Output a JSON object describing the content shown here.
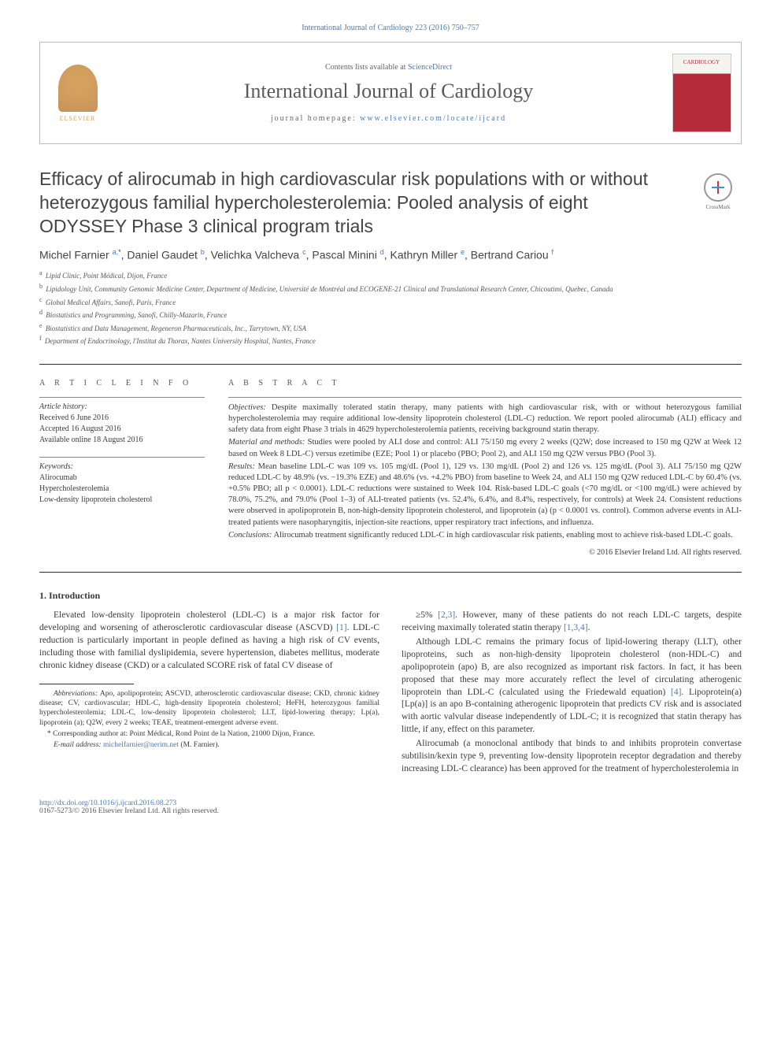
{
  "top_citation": "International Journal of Cardiology 223 (2016) 750–757",
  "header": {
    "contents_prefix": "Contents lists available at ",
    "contents_link": "ScienceDirect",
    "journal": "International Journal of Cardiology",
    "homepage_prefix": "journal homepage: ",
    "homepage_url": "www.elsevier.com/locate/ijcard",
    "publisher_logo_text": "ELSEVIER",
    "cover_text": "CARDIOLOGY"
  },
  "crossmark_label": "CrossMark",
  "title": "Efficacy of alirocumab in high cardiovascular risk populations with or without heterozygous familial hypercholesterolemia: Pooled analysis of eight ODYSSEY Phase 3 clinical program trials",
  "authors_html": "Michel Farnier <sup>a,</sup><sup class=\"sup-star\">*</sup>, Daniel Gaudet <sup>b</sup>, Velichka Valcheva <sup>c</sup>, Pascal Minini <sup>d</sup>, Kathryn Miller <sup>e</sup>, Bertrand Cariou <sup>f</sup>",
  "affiliations": [
    {
      "sup": "a",
      "text": "Lipid Clinic, Point Médical, Dijon, France"
    },
    {
      "sup": "b",
      "text": "Lipidology Unit, Community Genomic Medicine Center, Department of Medicine, Université de Montréal and ECOGENE-21 Clinical and Translational Research Center, Chicoutimi, Quebec, Canada"
    },
    {
      "sup": "c",
      "text": "Global Medical Affairs, Sanofi, Paris, France"
    },
    {
      "sup": "d",
      "text": "Biostatistics and Programming, Sanofi, Chilly-Mazarin, France"
    },
    {
      "sup": "e",
      "text": "Biostatistics and Data Management, Regeneron Pharmaceuticals, Inc., Tarrytown, NY, USA"
    },
    {
      "sup": "f",
      "text": "Department of Endocrinology, l'Institut du Thorax, Nantes University Hospital, Nantes, France"
    }
  ],
  "article_info": {
    "heading": "A R T I C L E   I N F O",
    "history_label": "Article history:",
    "history_lines": [
      "Received 6 June 2016",
      "Accepted 16 August 2016",
      "Available online 18 August 2016"
    ],
    "keywords_label": "Keywords:",
    "keywords": [
      "Alirocumab",
      "Hypercholesterolemia",
      "Low-density lipoprotein cholesterol"
    ]
  },
  "abstract": {
    "heading": "A B S T R A C T",
    "objectives_label": "Objectives:",
    "objectives": "Despite maximally tolerated statin therapy, many patients with high cardiovascular risk, with or without heterozygous familial hypercholesterolemia may require additional low-density lipoprotein cholesterol (LDL-C) reduction. We report pooled alirocumab (ALI) efficacy and safety data from eight Phase 3 trials in 4629 hypercholesterolemia patients, receiving background statin therapy.",
    "methods_label": "Material and methods:",
    "methods": "Studies were pooled by ALI dose and control: ALI 75/150 mg every 2 weeks (Q2W; dose increased to 150 mg Q2W at Week 12 based on Week 8 LDL-C) versus ezetimibe (EZE; Pool 1) or placebo (PBO; Pool 2), and ALI 150 mg Q2W versus PBO (Pool 3).",
    "results_label": "Results:",
    "results": "Mean baseline LDL-C was 109 vs. 105 mg/dL (Pool 1), 129 vs. 130 mg/dL (Pool 2) and 126 vs. 125 mg/dL (Pool 3). ALI 75/150 mg Q2W reduced LDL-C by 48.9% (vs. −19.3% EZE) and 48.6% (vs. +4.2% PBO) from baseline to Week 24, and ALI 150 mg Q2W reduced LDL-C by 60.4% (vs. +0.5% PBO; all p < 0.0001). LDL-C reductions were sustained to Week 104. Risk-based LDL-C goals (<70 mg/dL or <100 mg/dL) were achieved by 78.0%, 75.2%, and 79.0% (Pool 1–3) of ALI-treated patients (vs. 52.4%, 6.4%, and 8.4%, respectively, for controls) at Week 24. Consistent reductions were observed in apolipoprotein B, non-high-density lipoprotein cholesterol, and lipoprotein (a) (p < 0.0001 vs. control). Common adverse events in ALI-treated patients were nasopharyngitis, injection-site reactions, upper respiratory tract infections, and influenza.",
    "conclusions_label": "Conclusions:",
    "conclusions": "Alirocumab treatment significantly reduced LDL-C in high cardiovascular risk patients, enabling most to achieve risk-based LDL-C goals.",
    "copyright": "© 2016 Elsevier Ireland Ltd. All rights reserved."
  },
  "intro": {
    "heading": "1. Introduction",
    "p1_a": "Elevated low-density lipoprotein cholesterol (LDL-C) is a major risk factor for developing and worsening of atherosclerotic cardiovascular disease (ASCVD) ",
    "p1_ref1": "[1]",
    "p1_b": ". LDL-C reduction is particularly important in people defined as having a high risk of CV events, including those with familial dyslipidemia, severe hypertension, diabetes mellitus, moderate chronic kidney disease (CKD) or a calculated SCORE risk of fatal CV disease of ",
    "p2_a": "≥5% ",
    "p2_ref1": "[2,3]",
    "p2_b": ". However, many of these patients do not reach LDL-C targets, despite receiving maximally tolerated statin therapy ",
    "p2_ref2": "[1,3,4]",
    "p2_c": ".",
    "p3_a": "Although LDL-C remains the primary focus of lipid-lowering therapy (LLT), other lipoproteins, such as non-high-density lipoprotein cholesterol (non-HDL-C) and apolipoprotein (apo) B, are also recognized as important risk factors. In fact, it has been proposed that these may more accurately reflect the level of circulating atherogenic lipoprotein than LDL-C (calculated using the Friedewald equation) ",
    "p3_ref1": "[4]",
    "p3_b": ". Lipoprotein(a) [Lp(a)] is an apo B-containing atherogenic lipoprotein that predicts CV risk and is associated with aortic valvular disease independently of LDL-C; it is recognized that statin therapy has little, if any, effect on this parameter.",
    "p4": "Alirocumab (a monoclonal antibody that binds to and inhibits proprotein convertase subtilisin/kexin type 9, preventing low-density lipoprotein receptor degradation and thereby increasing LDL-C clearance) has been approved for the treatment of hypercholesterolemia in"
  },
  "footnotes": {
    "abbrev_label": "Abbreviations:",
    "abbrev_text": "Apo, apolipoprotein; ASCVD, atherosclerotic cardiovascular disease; CKD, chronic kidney disease; CV, cardiovascular; HDL-C, high-density lipoprotein cholesterol; HeFH, heterozygous familial hypercholesterolemia; LDL-C, low-density lipoprotein cholesterol; LLT, lipid-lowering therapy; Lp(a), lipoprotein (a); Q2W, every 2 weeks; TEAE, treatment-emergent adverse event.",
    "corr_label": "*",
    "corr_text": "Corresponding author at: Point Médical, Rond Point de la Nation, 21000 Dijon, France.",
    "email_label": "E-mail address:",
    "email": "michelfarnier@nerim.net",
    "email_suffix": " (M. Farnier)."
  },
  "bottom": {
    "doi": "http://dx.doi.org/10.1016/j.ijcard.2016.08.273",
    "issn_line": "0167-5273/© 2016 Elsevier Ireland Ltd. All rights reserved."
  },
  "colors": {
    "link": "#4a7bb5",
    "text": "#3a3a3a",
    "rule": "#333333",
    "elsevier_orange": "#d4a05e",
    "cover_red": "#b52b3a"
  }
}
